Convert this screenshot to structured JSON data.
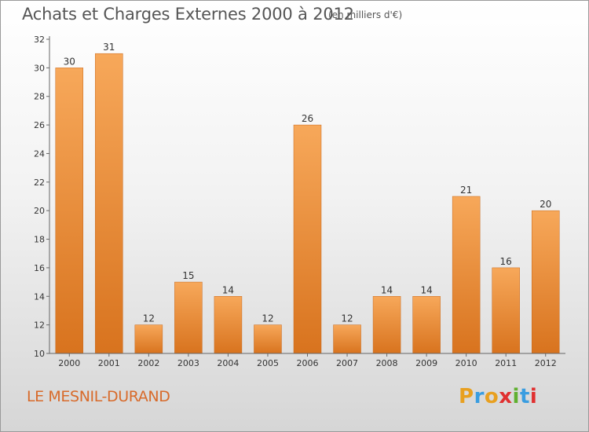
{
  "header": {
    "title": "Achats et Charges Externes 2000 à 2012",
    "subtitle": "(en milliers d'€)"
  },
  "footer": {
    "commune": "LE MESNIL-DURAND",
    "logo_text": "Proxiti",
    "logo_letters": [
      {
        "ch": "P",
        "color": "#e8a020"
      },
      {
        "ch": "r",
        "color": "#3a9de0"
      },
      {
        "ch": "o",
        "color": "#e8a020"
      },
      {
        "ch": "x",
        "color": "#e03030"
      },
      {
        "ch": "i",
        "color": "#60b030"
      },
      {
        "ch": "t",
        "color": "#3a9de0"
      },
      {
        "ch": "i",
        "color": "#e03030"
      }
    ]
  },
  "colors": {
    "bar_top": "#f7a85a",
    "bar_bottom": "#d8731e",
    "axis": "#666666",
    "commune": "#d86a2a"
  },
  "chart_data": {
    "type": "bar",
    "title": "Achats et Charges Externes 2000 à 2012",
    "subtitle": "(en milliers d'€)",
    "categories": [
      "2000",
      "2001",
      "2002",
      "2003",
      "2004",
      "2005",
      "2006",
      "2007",
      "2008",
      "2009",
      "2010",
      "2011",
      "2012"
    ],
    "values": [
      30,
      31,
      12,
      15,
      14,
      12,
      26,
      12,
      14,
      14,
      21,
      16,
      20
    ],
    "ylim": [
      10,
      32
    ],
    "yticks": [
      10,
      12,
      14,
      16,
      18,
      20,
      22,
      24,
      26,
      28,
      30,
      32
    ],
    "grid": false,
    "data_labels": true
  }
}
